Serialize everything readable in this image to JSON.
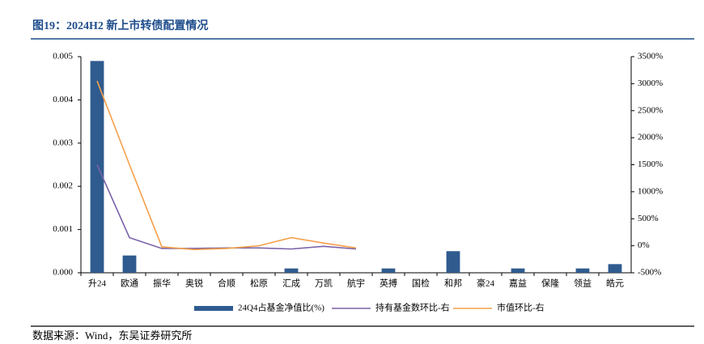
{
  "chart_data": {
    "type": "bar_line",
    "title": "图19：2024H2 新上市转债配置情况",
    "categories": [
      "升24",
      "欧通",
      "振华",
      "奥锐",
      "合顺",
      "松原",
      "汇成",
      "万凯",
      "航宇",
      "英搏",
      "国检",
      "和邦",
      "豪24",
      "嘉益",
      "保隆",
      "领益",
      "皓元"
    ],
    "series": [
      {
        "name": "24Q4占基金净值比(%)",
        "color": "#2f5b8f",
        "kind": "bar",
        "values": [
          0.0049,
          0.0004,
          0,
          0,
          0,
          0,
          0.0001,
          0,
          0,
          0.0001,
          0,
          0.0005,
          0,
          0.0001,
          0,
          0.0001,
          0.0002
        ]
      },
      {
        "name": "持有基金数环比-右",
        "color": "#7b62a8",
        "kind": "line",
        "axis": "y2",
        "values": [
          1500,
          150,
          -50,
          -50,
          -40,
          -40,
          -60,
          -10,
          -60,
          null,
          null,
          null,
          null,
          null,
          null,
          null,
          null
        ]
      },
      {
        "name": "市值环比-右",
        "color": "#f5a04a",
        "kind": "line",
        "axis": "y2",
        "values": [
          3050,
          1500,
          -20,
          -70,
          -50,
          0,
          150,
          50,
          -40,
          null,
          null,
          null,
          null,
          null,
          null,
          null,
          null
        ]
      }
    ],
    "ylim": [
      0,
      0.005
    ],
    "yticks": [
      {
        "value": 0,
        "label": "0.000"
      },
      0.001,
      0.002,
      0.003,
      0.004,
      0.005
    ],
    "y2lim": [
      -500,
      3500
    ],
    "y2ticks": [
      {
        "value": -500,
        "label": "-500%"
      },
      {
        "value": 0,
        "label": "0%"
      },
      {
        "value": 500,
        "label": "500%"
      },
      {
        "value": 1000,
        "label": "1000%"
      },
      {
        "value": 1500,
        "label": "1500%"
      },
      {
        "value": 2000,
        "label": "2000%"
      },
      {
        "value": 2500,
        "label": "2500%"
      },
      {
        "value": 3000,
        "label": "3000%"
      },
      {
        "value": 3500,
        "label": "3500%"
      }
    ],
    "grid": false,
    "legend": "bottom"
  },
  "footer": "数据来源：Wind，东吴证券研究所"
}
